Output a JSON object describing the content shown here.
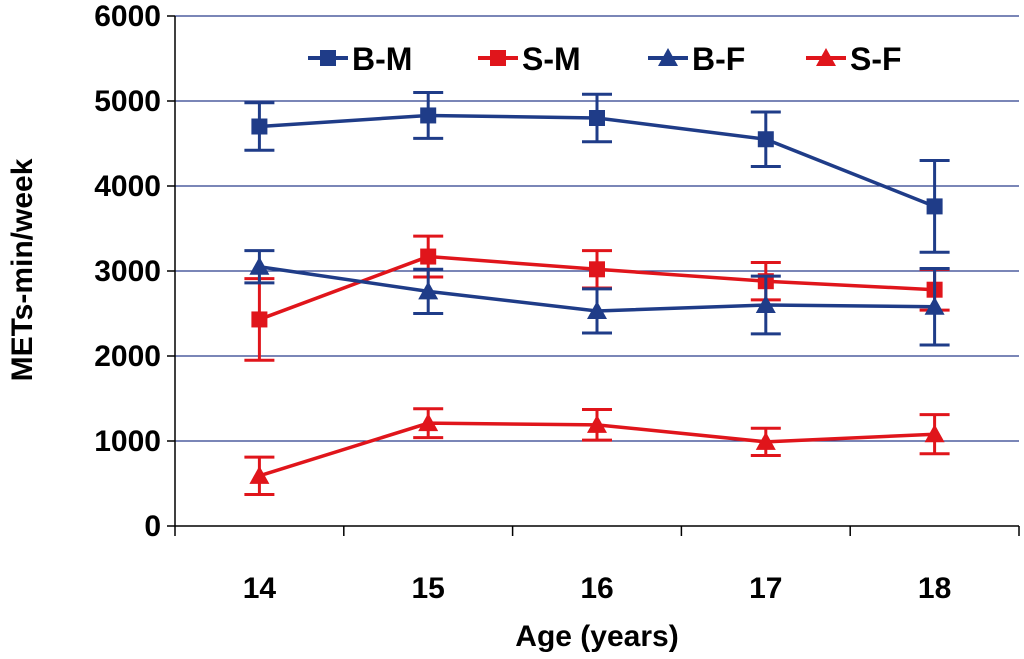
{
  "chart_data": {
    "type": "line",
    "title": "",
    "xlabel": "Age (years)",
    "ylabel": "METs-min/week",
    "categories": [
      "14",
      "15",
      "16",
      "17",
      "18"
    ],
    "ylim": [
      0,
      6000
    ],
    "yticks": [
      "0",
      "1000",
      "2000",
      "3000",
      "4000",
      "5000",
      "6000"
    ],
    "grid": true,
    "legend_position": "top",
    "series": [
      {
        "name": "B-M",
        "marker": "square",
        "color": "#1f3c88",
        "values": [
          4700,
          4830,
          4800,
          4550,
          3760
        ],
        "error": [
          280,
          270,
          280,
          320,
          540
        ]
      },
      {
        "name": "S-M",
        "marker": "square",
        "color": "#e0151b",
        "values": [
          2430,
          3170,
          3020,
          2880,
          2780
        ],
        "error": [
          480,
          240,
          220,
          220,
          240
        ]
      },
      {
        "name": "B-F",
        "marker": "triangle",
        "color": "#1f3c88",
        "values": [
          3050,
          2760,
          2530,
          2600,
          2580
        ],
        "error": [
          190,
          260,
          260,
          340,
          450
        ]
      },
      {
        "name": "S-F",
        "marker": "triangle",
        "color": "#e0151b",
        "values": [
          590,
          1210,
          1190,
          990,
          1080
        ],
        "error": [
          220,
          170,
          180,
          160,
          230
        ]
      }
    ]
  }
}
